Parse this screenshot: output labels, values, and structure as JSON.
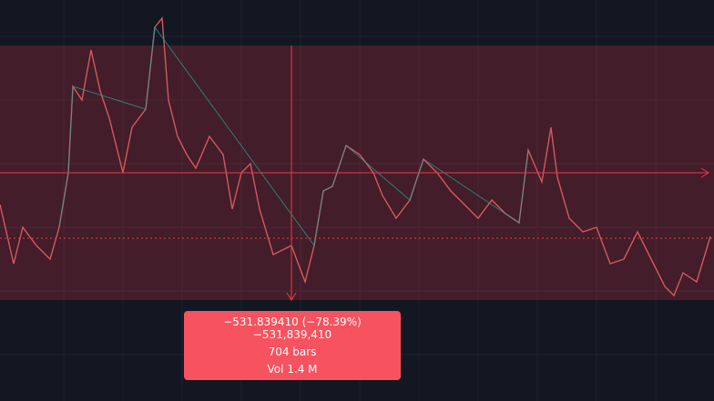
{
  "measure": {
    "change": "−531.839410 (−78.39%) −531,839,410",
    "bars": "704 bars",
    "volume": "Vol 1.4 M"
  }
}
